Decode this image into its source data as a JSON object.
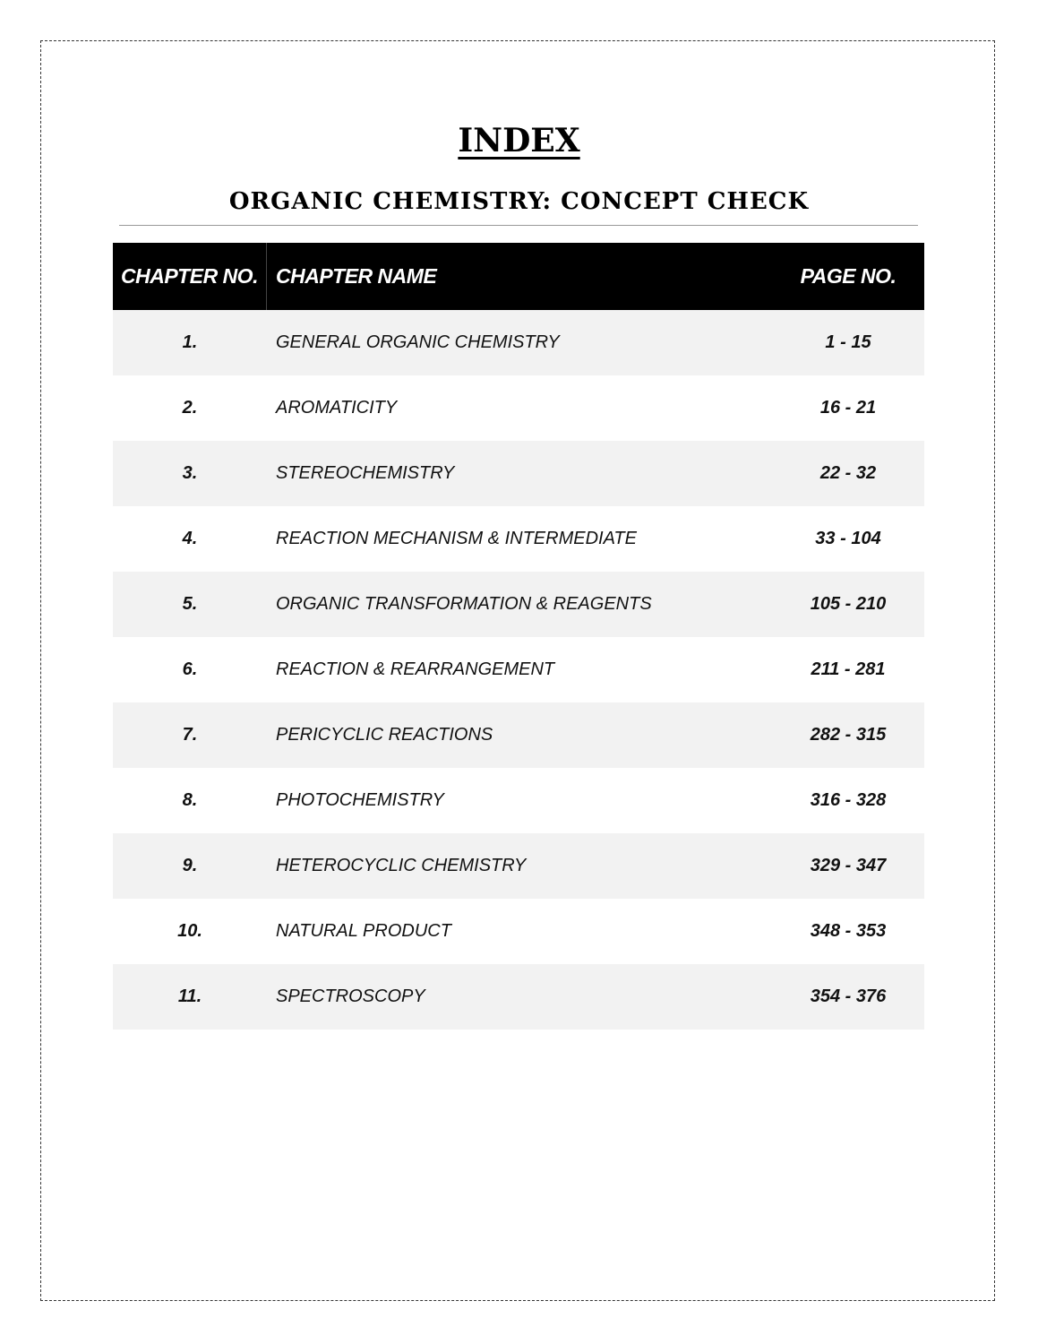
{
  "title": "INDEX",
  "subtitle": "ORGANIC CHEMISTRY: CONCEPT CHECK",
  "table": {
    "headers": [
      "CHAPTER NO.",
      "CHAPTER NAME",
      "PAGE NO."
    ],
    "rows": [
      {
        "no": "1.",
        "name": "GENERAL ORGANIC CHEMISTRY",
        "pages": "1 - 15"
      },
      {
        "no": "2.",
        "name": "AROMATICITY",
        "pages": "16 - 21"
      },
      {
        "no": "3.",
        "name": "STEREOCHEMISTRY",
        "pages": "22 - 32"
      },
      {
        "no": "4.",
        "name": "REACTION MECHANISM & INTERMEDIATE",
        "pages": "33 - 104"
      },
      {
        "no": "5.",
        "name": "ORGANIC TRANSFORMATION & REAGENTS",
        "pages": "105 - 210"
      },
      {
        "no": "6.",
        "name": "REACTION & REARRANGEMENT",
        "pages": "211 - 281"
      },
      {
        "no": "7.",
        "name": "PERICYCLIC REACTIONS",
        "pages": "282 - 315"
      },
      {
        "no": "8.",
        "name": "PHOTOCHEMISTRY",
        "pages": "316 - 328"
      },
      {
        "no": "9.",
        "name": "HETEROCYCLIC CHEMISTRY",
        "pages": "329 - 347"
      },
      {
        "no": "10.",
        "name": "NATURAL PRODUCT",
        "pages": "348 - 353"
      },
      {
        "no": "11.",
        "name": "SPECTROSCOPY",
        "pages": "354 - 376"
      }
    ]
  },
  "colors": {
    "header_bg": "#000000",
    "stripe_bg": "#f2f2f2"
  }
}
